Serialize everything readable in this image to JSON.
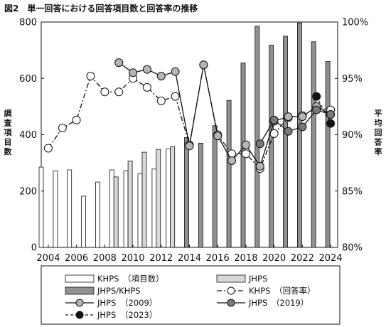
{
  "title": "図2　単一回答における回答項目数と回答率の推移",
  "chart_data": {
    "type": "bar",
    "x": [
      2004,
      2005,
      2006,
      2007,
      2008,
      2009,
      2010,
      2011,
      2012,
      2013,
      2014,
      2015,
      2016,
      2017,
      2018,
      2019,
      2020,
      2021,
      2022,
      2023,
      2024
    ],
    "x_ticks": [
      "2004",
      "2006",
      "2008",
      "2010",
      "2012",
      "2014",
      "2016",
      "2018",
      "2020",
      "2022",
      "2024"
    ],
    "xlim": [
      2003.5,
      2024.5
    ],
    "ylabel_left": "調査項目数",
    "ylabel_right": "平均回答率",
    "ylim_left": [
      0,
      800
    ],
    "ylim_right": [
      80,
      100
    ],
    "y_ticks_left": [
      "0",
      "200",
      "400",
      "600",
      "800"
    ],
    "y_ticks_right": [
      "80%",
      "85%",
      "90%",
      "95%",
      "100%"
    ],
    "grid": false,
    "legend_position": "bottom",
    "bar_series": [
      {
        "name": "KHPS　（項目数）",
        "color": "#ffffff",
        "values": [
          [
            2003.5,
            285
          ],
          [
            2004.5,
            272
          ],
          [
            2005.5,
            275
          ],
          [
            2006.5,
            182
          ],
          [
            2007.5,
            232
          ],
          [
            2008.5,
            275
          ],
          [
            2009.5,
            272
          ],
          [
            2010.5,
            262
          ],
          [
            2011.5,
            278
          ],
          [
            2012.5,
            350
          ]
        ]
      },
      {
        "name": "JHPS",
        "color": "#d9d9d9",
        "values": [
          [
            2008.8,
            250
          ],
          [
            2009.8,
            307
          ],
          [
            2010.8,
            338
          ],
          [
            2011.8,
            348
          ],
          [
            2012.8,
            358
          ]
        ]
      },
      {
        "name": "JHPS/KHPS",
        "color": "#909090",
        "values": [
          [
            2013.8,
            390
          ],
          [
            2014.8,
            370
          ],
          [
            2015.8,
            432
          ],
          [
            2016.8,
            522
          ],
          [
            2017.8,
            655
          ],
          [
            2018.8,
            785
          ],
          [
            2019.8,
            718
          ],
          [
            2020.8,
            750
          ],
          [
            2021.8,
            797
          ],
          [
            2022.8,
            730
          ],
          [
            2023.8,
            660
          ]
        ]
      }
    ],
    "line_series": [
      {
        "name": "KHPS　（回答率）",
        "style": "dash-dot",
        "marker": "#ffffff",
        "points": [
          [
            2004,
            88.8
          ],
          [
            2005,
            90.6
          ],
          [
            2006,
            91.3
          ],
          [
            2007,
            95.2
          ],
          [
            2008,
            93.8
          ],
          [
            2009,
            93.8
          ],
          [
            2010,
            95.0
          ],
          [
            2011,
            94.2
          ],
          [
            2012,
            93.0
          ],
          [
            2013,
            93.4
          ],
          [
            2014,
            89.1
          ],
          [
            2015,
            96.2
          ],
          [
            2016,
            90.0
          ],
          [
            2017,
            88.3
          ],
          [
            2018,
            88.3
          ],
          [
            2019,
            87.0
          ],
          [
            2020,
            90.1
          ],
          [
            2021,
            91.5
          ],
          [
            2022,
            91.7
          ],
          [
            2023,
            92.4
          ],
          [
            2024,
            92.2
          ]
        ]
      },
      {
        "name": "JHPS　（2009）",
        "style": "solid",
        "marker": "#b5b5b5",
        "points": [
          [
            2009,
            96.4
          ],
          [
            2010,
            95.5
          ],
          [
            2011,
            95.8
          ],
          [
            2012,
            95.2
          ],
          [
            2013,
            95.6
          ],
          [
            2014,
            89.0
          ],
          [
            2015,
            96.2
          ],
          [
            2016,
            89.9
          ],
          [
            2017,
            87.7
          ],
          [
            2018,
            89.1
          ],
          [
            2019,
            87.2
          ],
          [
            2020,
            91.2
          ],
          [
            2021,
            91.6
          ],
          [
            2022,
            91.6
          ],
          [
            2023,
            92.5
          ],
          [
            2024,
            91.8
          ]
        ]
      },
      {
        "name": "JHPS　（2019）",
        "style": "solid",
        "marker": "#7a7a7a",
        "points": [
          [
            2019,
            89.2
          ],
          [
            2020,
            91.3
          ],
          [
            2021,
            90.3
          ],
          [
            2022,
            90.7
          ],
          [
            2023,
            92.2
          ],
          [
            2024,
            91.8
          ]
        ]
      },
      {
        "name": "JHPS　（2023）",
        "style": "dashed",
        "marker": "#111111",
        "points": [
          [
            2023,
            93.4
          ],
          [
            2024,
            91.0
          ]
        ]
      }
    ]
  }
}
